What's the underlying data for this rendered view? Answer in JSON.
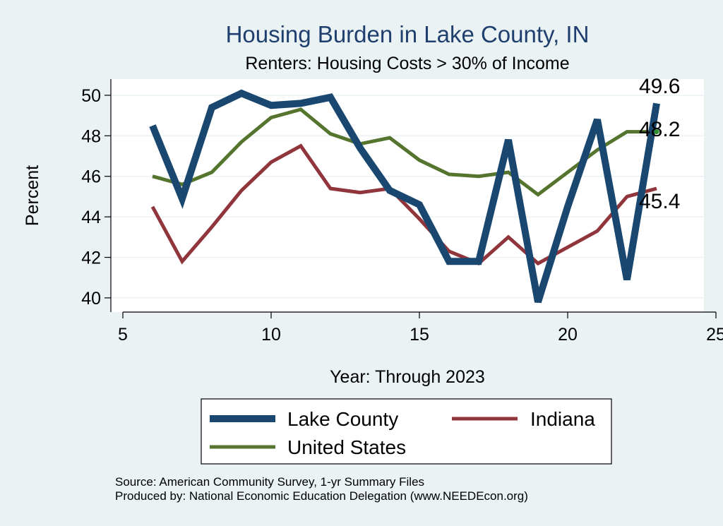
{
  "chart_data": {
    "type": "line",
    "title": "Housing Burden in Lake County, IN",
    "subtitle": "Renters: Housing Costs > 30% of Income",
    "xlabel": "Year: Through 2023",
    "ylabel": "Percent",
    "xlim": [
      5,
      25
    ],
    "ylim": [
      39.3,
      50.8
    ],
    "xticks": [
      5,
      10,
      15,
      20,
      25
    ],
    "yticks": [
      40,
      42,
      44,
      46,
      48,
      50
    ],
    "grid": true,
    "legend_position": "bottom",
    "series": [
      {
        "name": "Lake County",
        "color": "#1a476f",
        "x": [
          6,
          7,
          8,
          9,
          10,
          11,
          12,
          13,
          14,
          15,
          16,
          17,
          18,
          19,
          20,
          21,
          22,
          23
        ],
        "values": [
          48.5,
          44.9,
          49.4,
          50.1,
          49.5,
          49.6,
          49.9,
          47.4,
          45.3,
          44.6,
          41.8,
          41.8,
          47.8,
          39.8,
          44.5,
          48.8,
          40.9,
          49.6
        ],
        "end_label": "49.6"
      },
      {
        "name": "Indiana",
        "color": "#90353b",
        "x": [
          6,
          7,
          8,
          9,
          10,
          11,
          12,
          13,
          14,
          15,
          16,
          17,
          18,
          19,
          20,
          21,
          22,
          23
        ],
        "values": [
          44.5,
          41.8,
          43.5,
          45.3,
          46.7,
          47.5,
          45.4,
          45.2,
          45.4,
          43.9,
          42.3,
          41.7,
          43.0,
          41.7,
          42.5,
          43.3,
          45.0,
          45.4
        ],
        "end_label": "45.4"
      },
      {
        "name": "United States",
        "color": "#55752f",
        "x": [
          6,
          7,
          8,
          9,
          10,
          11,
          12,
          13,
          14,
          15,
          16,
          17,
          18,
          19,
          20,
          21,
          22,
          23
        ],
        "values": [
          46.0,
          45.6,
          46.2,
          47.7,
          48.9,
          49.3,
          48.1,
          47.6,
          47.9,
          46.8,
          46.1,
          46.0,
          46.2,
          45.1,
          46.2,
          47.3,
          48.2,
          48.2
        ],
        "end_label": "48.2"
      }
    ],
    "source_lines": [
      "Source: American Community Survey, 1-yr Summary Files",
      "Produced by: National Economic Education Delegation (www.NEEDEcon.org)"
    ]
  }
}
